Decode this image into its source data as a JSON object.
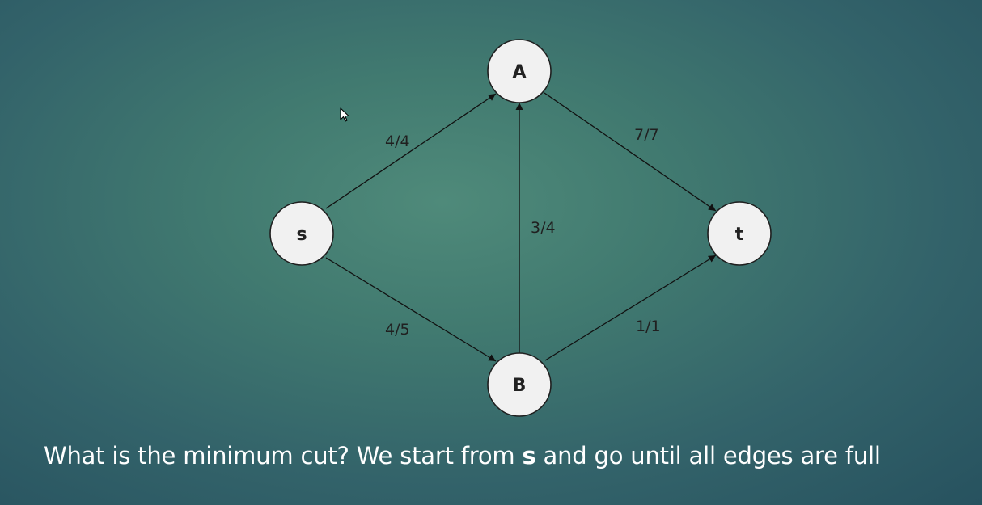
{
  "caption": {
    "before": "What is the minimum cut? We start from ",
    "emphasis": "s",
    "after": " and go until all edges are full"
  },
  "colors": {
    "background_center": "#4f8a7a",
    "background_edge": "#27525f",
    "node_fill": "#f1f1f1",
    "text": "#ffffff"
  },
  "graph": {
    "nodes": [
      {
        "id": "s",
        "label": "s"
      },
      {
        "id": "A",
        "label": "A"
      },
      {
        "id": "B",
        "label": "B"
      },
      {
        "id": "t",
        "label": "t"
      }
    ],
    "edges": [
      {
        "id": "s-A",
        "from": "s",
        "to": "A",
        "flow": 4,
        "capacity": 4,
        "label": "4/4"
      },
      {
        "id": "s-B",
        "from": "s",
        "to": "B",
        "flow": 4,
        "capacity": 5,
        "label": "4/5"
      },
      {
        "id": "B-A",
        "from": "B",
        "to": "A",
        "flow": 3,
        "capacity": 4,
        "label": "3/4"
      },
      {
        "id": "A-t",
        "from": "A",
        "to": "t",
        "flow": 7,
        "capacity": 7,
        "label": "7/7"
      },
      {
        "id": "B-t",
        "from": "B",
        "to": "t",
        "flow": 1,
        "capacity": 1,
        "label": "1/1"
      }
    ]
  },
  "icons": {
    "cursor": "mouse-pointer-icon"
  }
}
